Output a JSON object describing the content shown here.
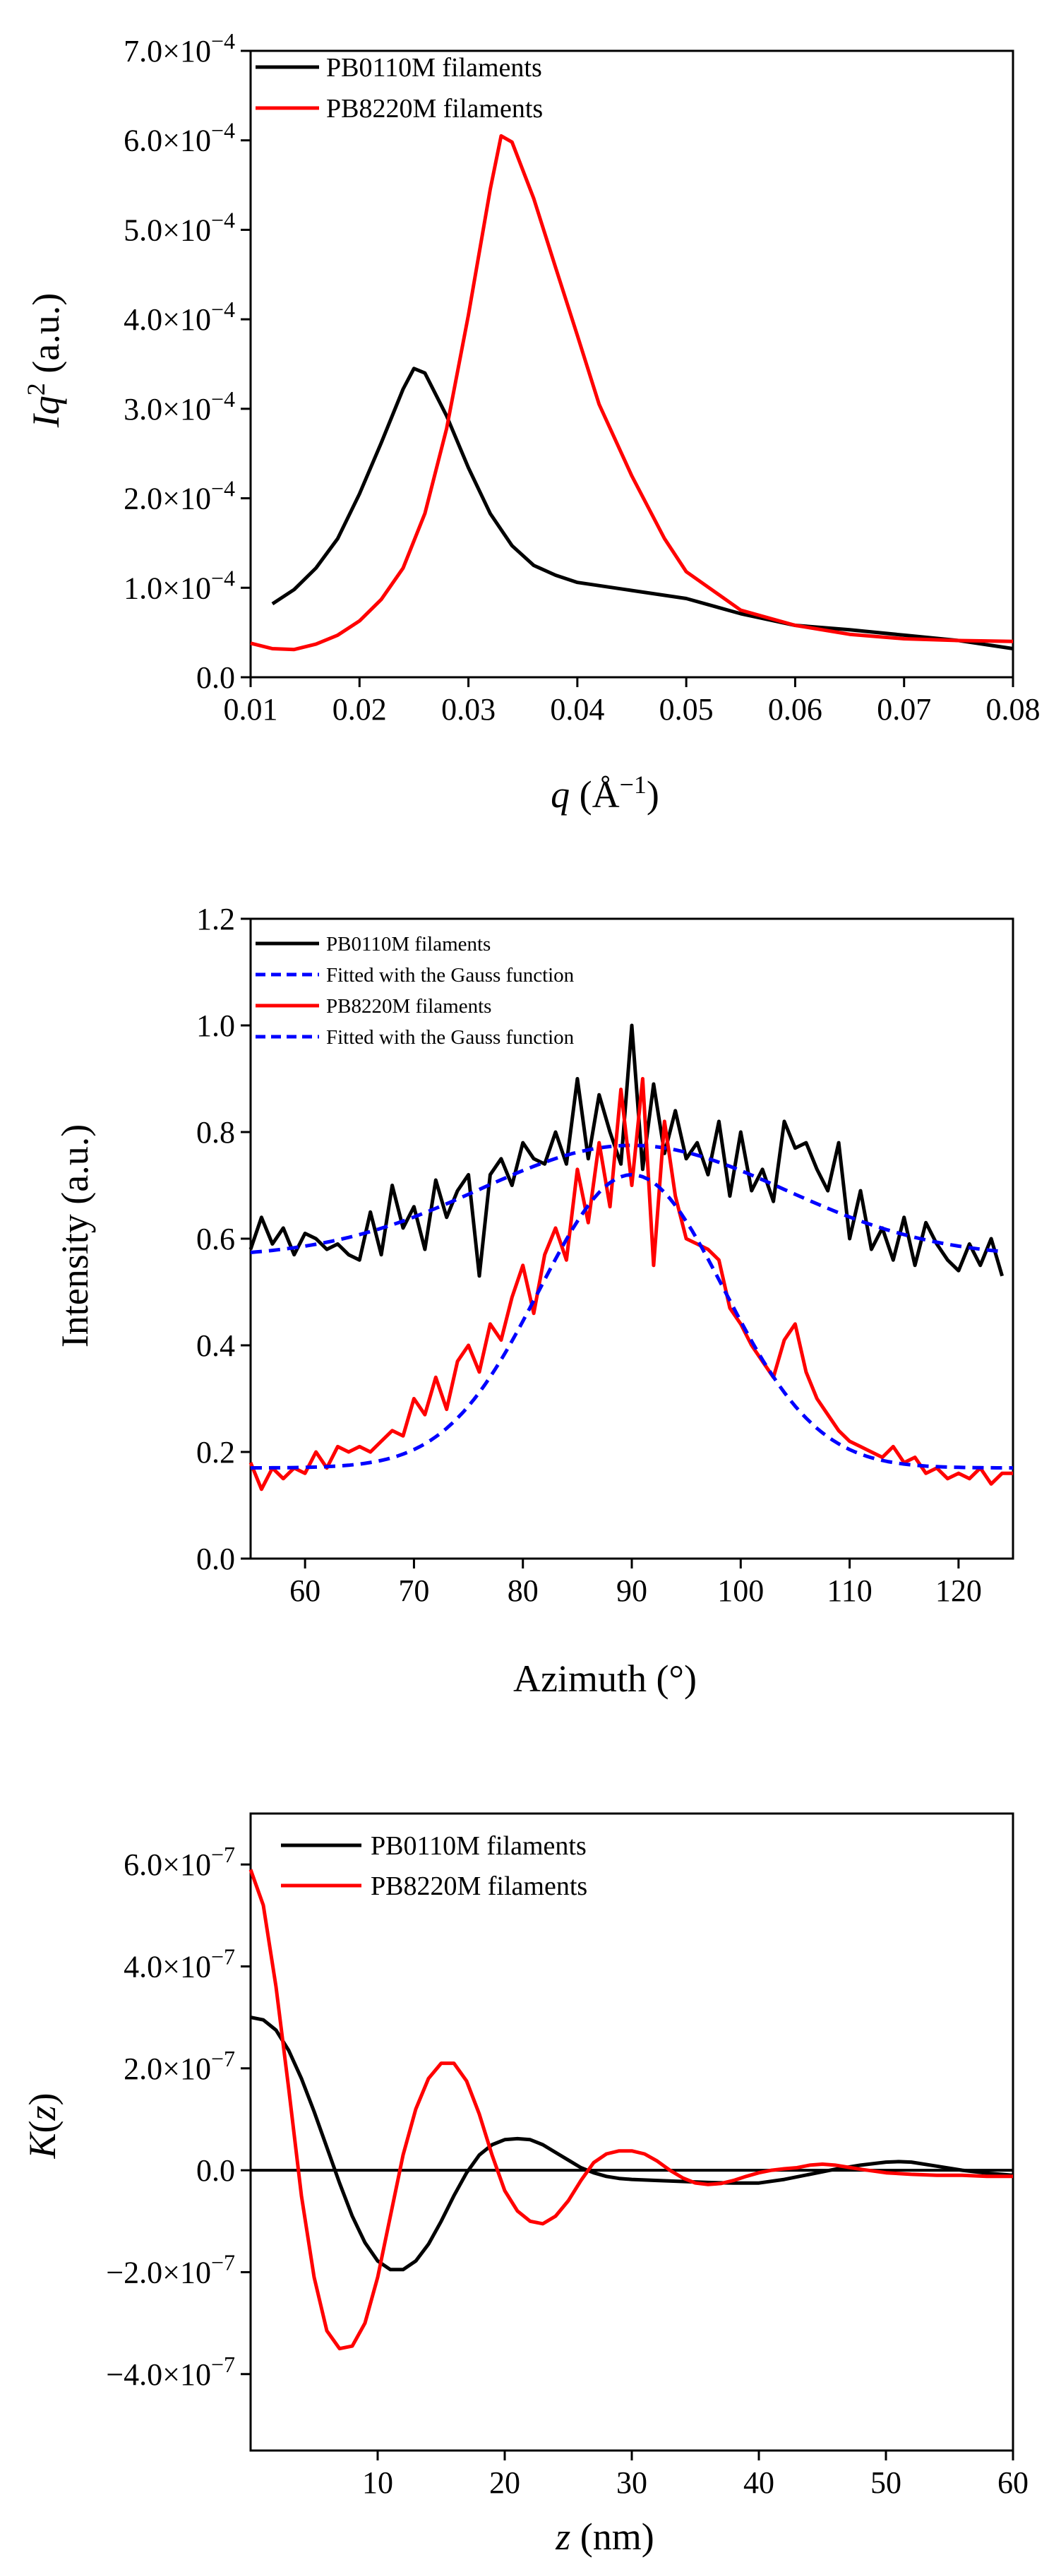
{
  "chart_data": [
    {
      "type": "line",
      "xlabel": {
        "italic": "q",
        "rest": " (Å",
        "sup": "−1",
        "close": ")"
      },
      "ylabel": {
        "italic": "Iq",
        "sup": "2",
        "rest": " (a.u.)"
      },
      "xlim": [
        0.01,
        0.08
      ],
      "ylim": [
        0,
        0.0007
      ],
      "xticks": [
        0.01,
        0.02,
        0.03,
        0.04,
        0.05,
        0.06,
        0.07,
        0.08
      ],
      "xtick_labels": [
        "0.01",
        "0.02",
        "0.03",
        "0.04",
        "0.05",
        "0.06",
        "0.07",
        "0.08"
      ],
      "yticks": [
        0,
        0.0001,
        0.0002,
        0.0003,
        0.0004,
        0.0005,
        0.0006,
        0.0007
      ],
      "ytick_labels": [
        {
          "base": "0.0",
          "exp": ""
        },
        {
          "base": "1.0×10",
          "exp": "−4"
        },
        {
          "base": "2.0×10",
          "exp": "−4"
        },
        {
          "base": "3.0×10",
          "exp": "−4"
        },
        {
          "base": "4.0×10",
          "exp": "−4"
        },
        {
          "base": "5.0×10",
          "exp": "−4"
        },
        {
          "base": "6.0×10",
          "exp": "−4"
        },
        {
          "base": "7.0×10",
          "exp": "−4"
        }
      ],
      "legend_position": "top-left",
      "series": [
        {
          "name": "PB0110M filaments",
          "color": "#000000",
          "style": "solid",
          "x": [
            0.012,
            0.014,
            0.016,
            0.018,
            0.02,
            0.022,
            0.024,
            0.025,
            0.026,
            0.028,
            0.03,
            0.032,
            0.034,
            0.036,
            0.038,
            0.04,
            0.045,
            0.05,
            0.055,
            0.06,
            0.065,
            0.07,
            0.075,
            0.08
          ],
          "y": [
            8.2e-05,
            9.8e-05,
            0.000122,
            0.000155,
            0.000205,
            0.000262,
            0.000322,
            0.000345,
            0.00034,
            0.000292,
            0.000234,
            0.000183,
            0.000147,
            0.000125,
            0.000114,
            0.000106,
            9.7e-05,
            8.8e-05,
            7.1e-05,
            5.8e-05,
            5.3e-05,
            4.7e-05,
            4.1e-05,
            3.2e-05
          ]
        },
        {
          "name": "PB8220M filaments",
          "color": "#ff0000",
          "style": "solid",
          "x": [
            0.01,
            0.012,
            0.014,
            0.016,
            0.018,
            0.02,
            0.022,
            0.024,
            0.026,
            0.028,
            0.03,
            0.032,
            0.033,
            0.034,
            0.036,
            0.038,
            0.04,
            0.042,
            0.045,
            0.048,
            0.05,
            0.055,
            0.06,
            0.065,
            0.07,
            0.075,
            0.08
          ],
          "y": [
            3.8e-05,
            3.2e-05,
            3.1e-05,
            3.7e-05,
            4.7e-05,
            6.3e-05,
            8.7e-05,
            0.000122,
            0.000183,
            0.000278,
            0.000405,
            0.000545,
            0.000605,
            0.000598,
            0.000535,
            0.000458,
            0.000382,
            0.000305,
            0.000225,
            0.000155,
            0.000118,
            7.5e-05,
            5.8e-05,
            4.8e-05,
            4.3e-05,
            4.1e-05,
            4e-05
          ]
        }
      ]
    },
    {
      "type": "line",
      "xlabel": "Azimuth (°)",
      "ylabel": "Intensity (a.u.)",
      "xlim": [
        55,
        125
      ],
      "ylim": [
        0,
        1.2
      ],
      "xticks": [
        60,
        70,
        80,
        90,
        100,
        110,
        120
      ],
      "xtick_labels": [
        "60",
        "70",
        "80",
        "90",
        "100",
        "110",
        "120"
      ],
      "yticks": [
        0,
        0.2,
        0.4,
        0.6,
        0.8,
        1.0,
        1.2
      ],
      "ytick_labels": [
        "0.0",
        "0.2",
        "0.4",
        "0.6",
        "0.8",
        "1.0",
        "1.2"
      ],
      "legend_position": "top-left",
      "series": [
        {
          "name": "PB0110M filaments",
          "color": "#000000",
          "style": "solid",
          "x": [
            55,
            56,
            57,
            58,
            59,
            60,
            61,
            62,
            63,
            64,
            65,
            66,
            67,
            68,
            69,
            70,
            71,
            72,
            73,
            74,
            75,
            76,
            77,
            78,
            79,
            80,
            81,
            82,
            83,
            84,
            85,
            86,
            87,
            88,
            89,
            90,
            91,
            92,
            93,
            94,
            95,
            96,
            97,
            98,
            99,
            100,
            101,
            102,
            103,
            104,
            105,
            106,
            107,
            108,
            109,
            110,
            111,
            112,
            113,
            114,
            115,
            116,
            117,
            118,
            119,
            120,
            121,
            122,
            123,
            124
          ],
          "y": [
            0.58,
            0.64,
            0.59,
            0.62,
            0.57,
            0.61,
            0.6,
            0.58,
            0.59,
            0.57,
            0.56,
            0.65,
            0.57,
            0.7,
            0.62,
            0.66,
            0.58,
            0.71,
            0.64,
            0.69,
            0.72,
            0.53,
            0.72,
            0.75,
            0.7,
            0.78,
            0.75,
            0.74,
            0.8,
            0.74,
            0.9,
            0.75,
            0.87,
            0.8,
            0.74,
            1.0,
            0.73,
            0.89,
            0.76,
            0.84,
            0.75,
            0.78,
            0.72,
            0.82,
            0.68,
            0.8,
            0.69,
            0.73,
            0.67,
            0.82,
            0.77,
            0.78,
            0.73,
            0.69,
            0.78,
            0.6,
            0.69,
            0.58,
            0.62,
            0.56,
            0.64,
            0.55,
            0.63,
            0.59,
            0.56,
            0.54,
            0.59,
            0.55,
            0.6,
            0.53
          ]
        },
        {
          "name": "Fitted with the Gauss function",
          "color": "#0000ff",
          "style": "dashed",
          "fit": "gauss",
          "baseline": 0.565,
          "amplitude": 0.21,
          "center": 90,
          "sigma": 14,
          "x_range": [
            55,
            124
          ]
        },
        {
          "name": "PB8220M filaments",
          "color": "#ff0000",
          "style": "solid",
          "x": [
            55,
            56,
            57,
            58,
            59,
            60,
            61,
            62,
            63,
            64,
            65,
            66,
            67,
            68,
            69,
            70,
            71,
            72,
            73,
            74,
            75,
            76,
            77,
            78,
            79,
            80,
            81,
            82,
            83,
            84,
            85,
            86,
            87,
            88,
            89,
            90,
            91,
            92,
            93,
            94,
            95,
            96,
            97,
            98,
            99,
            100,
            101,
            102,
            103,
            104,
            105,
            106,
            107,
            108,
            109,
            110,
            111,
            112,
            113,
            114,
            115,
            116,
            117,
            118,
            119,
            120,
            121,
            122,
            123,
            124,
            125
          ],
          "y": [
            0.18,
            0.13,
            0.17,
            0.15,
            0.17,
            0.16,
            0.2,
            0.17,
            0.21,
            0.2,
            0.21,
            0.2,
            0.22,
            0.24,
            0.23,
            0.3,
            0.27,
            0.34,
            0.28,
            0.37,
            0.4,
            0.35,
            0.44,
            0.41,
            0.49,
            0.55,
            0.46,
            0.57,
            0.62,
            0.56,
            0.73,
            0.63,
            0.78,
            0.66,
            0.88,
            0.7,
            0.9,
            0.55,
            0.82,
            0.68,
            0.6,
            0.59,
            0.58,
            0.56,
            0.47,
            0.44,
            0.4,
            0.37,
            0.34,
            0.41,
            0.44,
            0.35,
            0.3,
            0.27,
            0.24,
            0.22,
            0.21,
            0.2,
            0.19,
            0.21,
            0.18,
            0.19,
            0.16,
            0.17,
            0.15,
            0.16,
            0.15,
            0.17,
            0.14,
            0.16,
            0.16
          ]
        },
        {
          "name": "Fitted with the Gauss function",
          "color": "#0000ff",
          "style": "dashed",
          "fit": "gauss",
          "baseline": 0.17,
          "amplitude": 0.55,
          "center": 90,
          "sigma": 8.5,
          "x_range": [
            55,
            125
          ]
        }
      ]
    },
    {
      "type": "line",
      "xlabel": {
        "italic": "z",
        "rest": " (nm)"
      },
      "ylabel": {
        "italic": "K",
        "rest": "(",
        "italic2": "z",
        "close": ")"
      },
      "xlim": [
        0,
        60
      ],
      "ylim": [
        -5.5e-07,
        7e-07
      ],
      "xticks": [
        10,
        20,
        30,
        40,
        50,
        60
      ],
      "xtick_labels": [
        "10",
        "20",
        "30",
        "40",
        "50",
        "60"
      ],
      "yticks": [
        -4e-07,
        -2e-07,
        0,
        2e-07,
        4e-07,
        6e-07
      ],
      "ytick_labels": [
        {
          "base": "−4.0×10",
          "exp": "−7"
        },
        {
          "base": "−2.0×10",
          "exp": "−7"
        },
        {
          "base": "0.0",
          "exp": ""
        },
        {
          "base": "2.0×10",
          "exp": "−7"
        },
        {
          "base": "4.0×10",
          "exp": "−7"
        },
        {
          "base": "6.0×10",
          "exp": "−7"
        }
      ],
      "zero_line": true,
      "legend_position": "top-center",
      "series": [
        {
          "name": "PB0110M filaments",
          "color": "#000000",
          "style": "solid",
          "x": [
            0,
            1,
            2,
            3,
            4,
            5,
            6,
            7,
            8,
            9,
            10,
            11,
            12,
            13,
            14,
            15,
            16,
            17,
            18,
            19,
            20,
            21,
            22,
            23,
            24,
            25,
            26,
            27,
            28,
            29,
            30,
            32,
            34,
            36,
            38,
            40,
            42,
            44,
            46,
            48,
            50,
            51,
            52,
            54,
            56,
            58,
            60
          ],
          "y": [
            3e-07,
            2.95e-07,
            2.75e-07,
            2.35e-07,
            1.8e-07,
            1.15e-07,
            4.5e-08,
            -2.5e-08,
            -9e-08,
            -1.42e-07,
            -1.78e-07,
            -1.95e-07,
            -1.95e-07,
            -1.78e-07,
            -1.45e-07,
            -1e-07,
            -5e-08,
            -5e-09,
            3e-08,
            5e-08,
            6e-08,
            6.2e-08,
            6e-08,
            5e-08,
            3.5e-08,
            2e-08,
            5e-09,
            -5e-09,
            -1.2e-08,
            -1.6e-08,
            -1.8e-08,
            -2e-08,
            -2.2e-08,
            -2.4e-08,
            -2.5e-08,
            -2.5e-08,
            -1.8e-08,
            -8e-09,
            2e-09,
            1e-08,
            1.6e-08,
            1.7e-08,
            1.6e-08,
            8e-09,
            0,
            -6e-09,
            -1e-08
          ]
        },
        {
          "name": "PB8220M filaments",
          "color": "#ff0000",
          "style": "solid",
          "x": [
            0,
            1,
            2,
            3,
            4,
            5,
            6,
            7,
            8,
            9,
            10,
            11,
            12,
            13,
            14,
            15,
            16,
            17,
            18,
            19,
            20,
            21,
            22,
            23,
            24,
            25,
            26,
            27,
            28,
            29,
            30,
            31,
            32,
            33,
            34,
            35,
            36,
            37,
            38,
            39,
            40,
            41,
            42,
            43,
            44,
            45,
            46,
            48,
            50,
            52,
            54,
            56,
            58,
            60
          ],
          "y": [
            5.9e-07,
            5.2e-07,
            3.6e-07,
            1.6e-07,
            -5e-08,
            -2.1e-07,
            -3.15e-07,
            -3.5e-07,
            -3.45e-07,
            -3e-07,
            -2.1e-07,
            -9e-08,
            3e-08,
            1.2e-07,
            1.8e-07,
            2.1e-07,
            2.1e-07,
            1.75e-07,
            1.1e-07,
            3e-08,
            -4e-08,
            -8e-08,
            -1e-07,
            -1.05e-07,
            -9e-08,
            -6e-08,
            -2e-08,
            1.5e-08,
            3.2e-08,
            3.8e-08,
            3.8e-08,
            3.2e-08,
            1.8e-08,
            0,
            -1.5e-08,
            -2.5e-08,
            -2.8e-08,
            -2.6e-08,
            -2e-08,
            -1.2e-08,
            -5e-09,
            0,
            3e-09,
            5e-09,
            1e-08,
            1.2e-08,
            1e-08,
            2e-09,
            -5e-09,
            -8e-09,
            -1e-08,
            -1e-08,
            -1.2e-08,
            -1.2e-08
          ]
        }
      ]
    }
  ]
}
